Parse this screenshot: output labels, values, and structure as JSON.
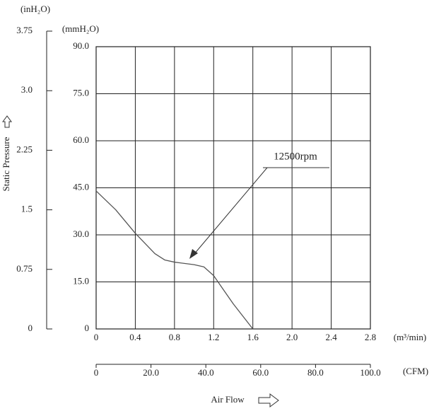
{
  "chart_data": {
    "type": "line",
    "x_label": "Air Flow",
    "y_label": "Static Pressure",
    "x_unit": "(m³/min)",
    "x2_unit": "(CFM)",
    "y_unit": "(mmH₂O)",
    "y2_unit": "(inH₂O)",
    "x": [
      0,
      0.2,
      0.4,
      0.6,
      0.7,
      0.8,
      1.0,
      1.1,
      1.2,
      1.3,
      1.4,
      1.5,
      1.6
    ],
    "series": [
      {
        "name": "12500rpm",
        "color": "#555555",
        "values": [
          44,
          38,
          30.5,
          24,
          22,
          21.3,
          20.5,
          19.8,
          17,
          12.5,
          8,
          4,
          0
        ]
      }
    ],
    "xlim": [
      0,
      2.8
    ],
    "xticks": [
      0,
      0.4,
      0.8,
      1.2,
      {
        "value": 1.6,
        "label": "1.6"
      },
      {
        "value": 2.0,
        "label": "2.0"
      },
      2.4,
      2.8
    ],
    "ylim": [
      0,
      90
    ],
    "yticks": [
      0,
      {
        "value": 15,
        "label": "15.0"
      },
      {
        "value": 30,
        "label": "30.0"
      },
      {
        "value": 45,
        "label": "45.0"
      },
      {
        "value": 60,
        "label": "60.0"
      },
      {
        "value": 75,
        "label": "75.0"
      },
      {
        "value": 90,
        "label": "90.0"
      }
    ],
    "x2lim": [
      0,
      100
    ],
    "x2ticks": [
      0,
      {
        "value": 20,
        "label": "20.0"
      },
      {
        "value": 40,
        "label": "40.0"
      },
      {
        "value": 60,
        "label": "60.0"
      },
      {
        "value": 80,
        "label": "80.0"
      },
      {
        "value": 100,
        "label": "100.0"
      }
    ],
    "y2lim": [
      0,
      3.75
    ],
    "y2ticks": [
      0,
      0.75,
      1.5,
      2.25,
      {
        "value": 3,
        "label": "3.0"
      },
      3.75
    ],
    "grid": true
  }
}
